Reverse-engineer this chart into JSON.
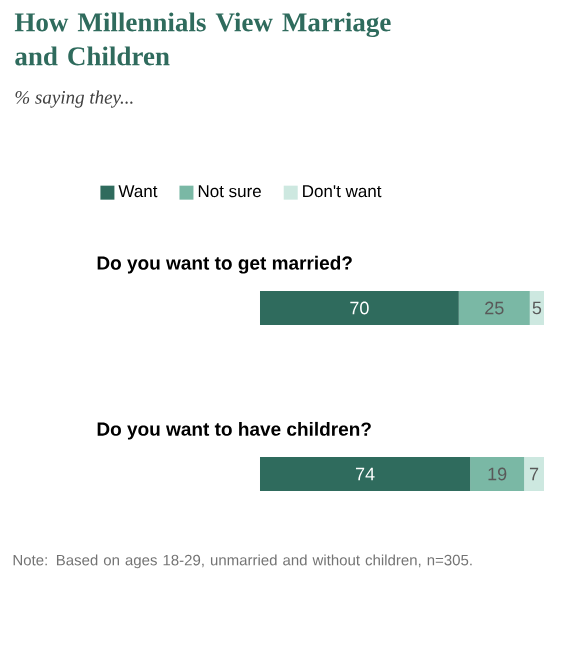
{
  "chart_data": {
    "type": "bar",
    "orientation": "horizontal",
    "stacked": true,
    "title": "How Millennials View Marriage and Children",
    "subtitle": "% saying they...",
    "categories": [
      "Do you want to get married?",
      "Do you want to have children?"
    ],
    "series": [
      {
        "name": "Want",
        "color": "#2f6b5d",
        "values": [
          70,
          74
        ]
      },
      {
        "name": "Not sure",
        "color": "#7ab8a5",
        "values": [
          25,
          19
        ]
      },
      {
        "name": "Don't want",
        "color": "#cde8e0",
        "values": [
          5,
          7
        ]
      }
    ],
    "data_labels": true,
    "legend": "top",
    "annotations": [
      "Note: Based on ages 18-29, unmarried and without children, n=305."
    ]
  }
}
